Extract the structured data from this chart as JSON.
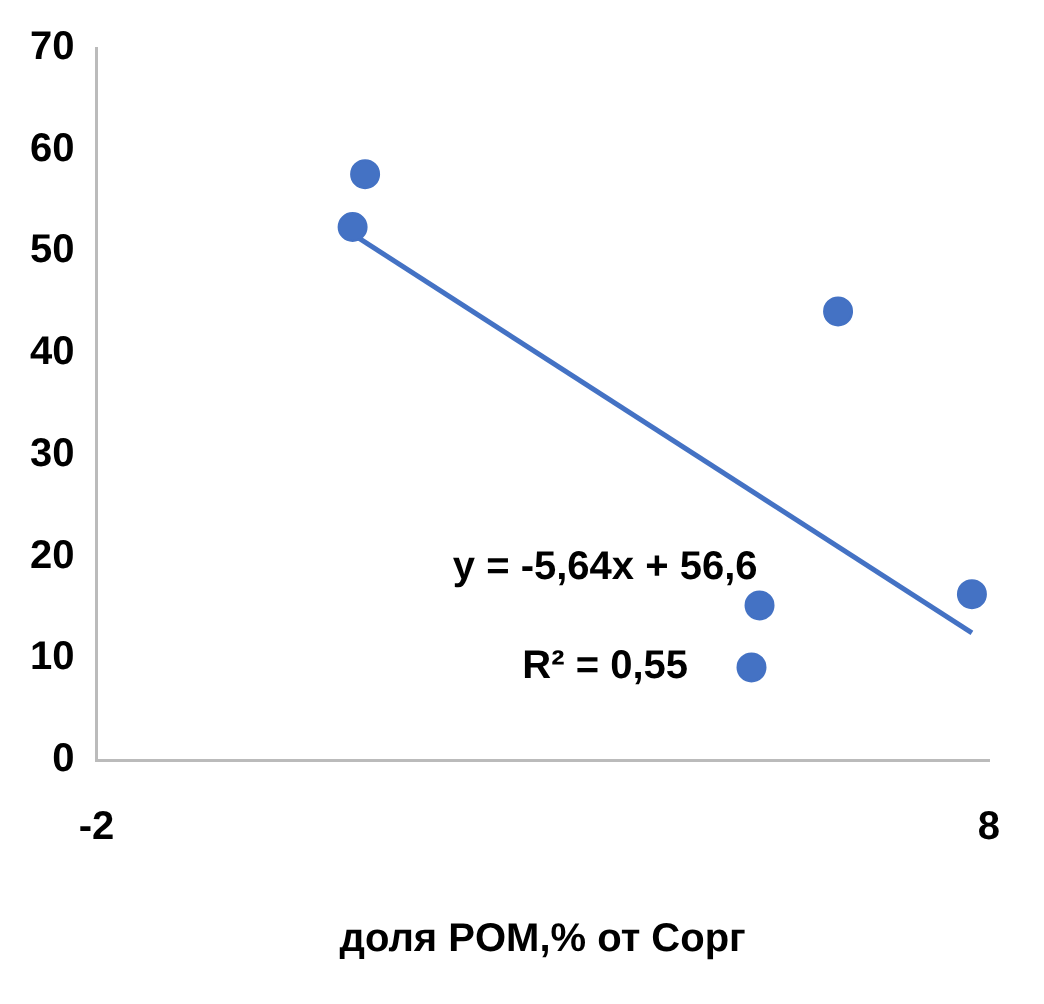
{
  "chart_data": {
    "type": "scatter",
    "xlabel": "доля POM,% от Cорг",
    "xlim": [
      -2,
      8
    ],
    "xticks": [
      -2,
      8
    ],
    "ylim": [
      0,
      70
    ],
    "yticks": [
      0,
      10,
      20,
      30,
      40,
      50,
      60,
      70
    ],
    "grid": false,
    "legend": false,
    "marker": "circle",
    "series": [
      {
        "color": "#4472c4",
        "x": [
          0.87,
          1.01,
          5.43,
          5.34,
          6.31,
          7.81
        ],
        "values": [
          52.4,
          57.6,
          15.2,
          9.1,
          44.1,
          16.3
        ]
      },
      {
        "type": "line",
        "color": "#4472c4",
        "x": [
          0.87,
          7.81
        ],
        "values": [
          51.7,
          12.5
        ],
        "marker": "none",
        "line_style": "solid"
      }
    ],
    "annotations": [
      "y = -5,64x + 56,6",
      "R² = 0,55"
    ]
  }
}
